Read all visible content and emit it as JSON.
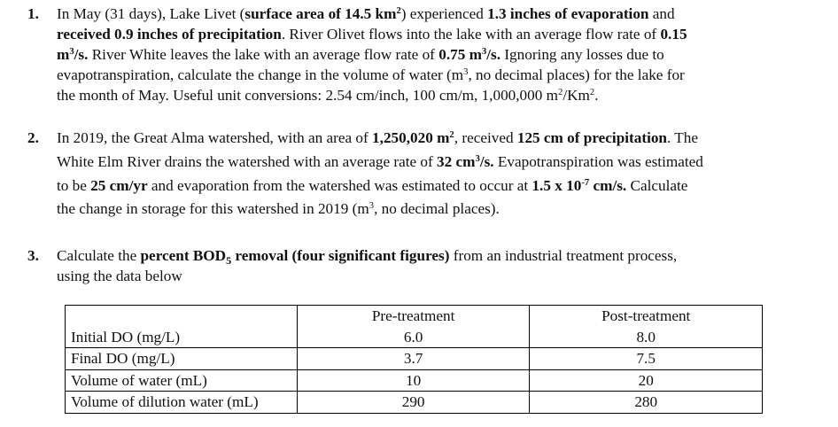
{
  "questions": [
    {
      "number": "1.",
      "lines": [
        {
          "s1": "In May (31 days), Lake Livet (",
          "b1": "surface area of 14.5 km",
          "sup1": "2",
          "s2": ") experienced ",
          "b2": "1.3 inches of evaporation",
          "s3": " and"
        },
        {
          "b1": "received 0.9 inches of precipitation",
          "s1": ". River Olivet flows into the lake with an average flow rate of ",
          "b2": "0.15"
        },
        {
          "b1": "m",
          "sup1": "3",
          "b2": "/s.",
          "s1": " River White leaves the lake with an average flow rate of ",
          "b3": "0.75 m",
          "sup2": "3",
          "b4": "/s.",
          "s2": " Ignoring any losses due to"
        },
        {
          "s1": "evapotranspiration, calculate the change in the volume of water (m",
          "sup1": "3",
          "s2": ", no decimal places) for the lake for"
        },
        {
          "s1": "the month of May. Useful unit conversions: 2.54 cm/inch, 100 cm/m, 1,000,000 m",
          "sup1": "2",
          "s2": "/Km",
          "sup2": "2",
          "s3": "."
        }
      ]
    },
    {
      "number": "2.",
      "lines": [
        {
          "s1": "In 2019, the Great Alma watershed, with an area of ",
          "b1": "1,250,020 m",
          "sup1": "2",
          "s2": ", received ",
          "b2": "125 cm of precipitation",
          "s3": ". The"
        },
        {
          "s1": "White Elm River drains the watershed with an average rate of ",
          "b1": "32 cm",
          "sup1": "3",
          "b2": "/s.",
          "s2": " Evapotranspiration was estimated"
        },
        {
          "s1": "to be ",
          "b1": "25 cm/yr",
          "s2": " and evaporation from the watershed was estimated to occur at ",
          "b2": "1.5 x 10",
          "sup1": "-7",
          "b3": " cm/s.",
          "s3": " Calculate"
        },
        {
          "s1": "the change in storage for this watershed in 2019 (m",
          "sup1": "3",
          "s2": ", no decimal places)."
        }
      ]
    },
    {
      "number": "3.",
      "lines": [
        {
          "s1": "Calculate the ",
          "b1": "percent BOD",
          "sub1": "5",
          "b2": " removal (four significant figures)",
          "s2": " from an industrial treatment process,"
        },
        {
          "s1": "using the data below"
        }
      ]
    }
  ],
  "table": {
    "headers": [
      "",
      "Pre-treatment",
      "Post-treatment"
    ],
    "rows": [
      [
        "Initial DO (mg/L)",
        "6.0",
        "8.0"
      ],
      [
        "Final DO (mg/L)",
        "3.7",
        "7.5"
      ],
      [
        "Volume of water (mL)",
        "10",
        "20"
      ],
      [
        "Volume of dilution water (mL)",
        "290",
        "280"
      ]
    ]
  }
}
